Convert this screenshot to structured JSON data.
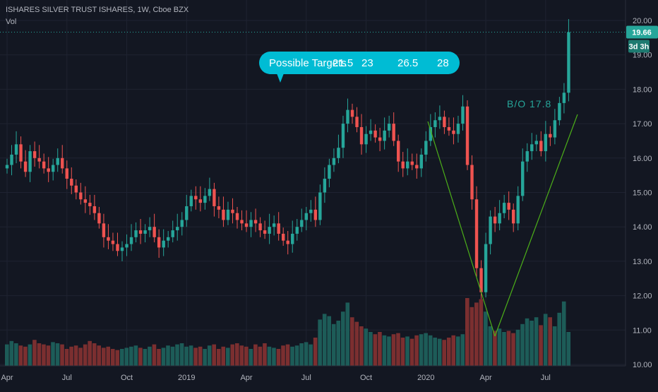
{
  "header": {
    "title": "ISHARES SILVER TRUST ISHARES, 1W, Cboe BZX",
    "vol_label": "Vol"
  },
  "price_tag": {
    "value": "19.66",
    "countdown": "3d 3h"
  },
  "callout": {
    "label": "Possible Targets",
    "targets": [
      "21.5",
      "23",
      "26.5",
      "28"
    ]
  },
  "breakout_label": "B/O  17.8",
  "colors": {
    "up": "#26a69a",
    "down": "#ef5350",
    "trendline": "#4caf19",
    "callout": "#00bcd4",
    "background": "#131722"
  },
  "chart_data": {
    "type": "candlestick",
    "interval": "1W",
    "ylim": [
      9.95,
      20.4
    ],
    "y_ticks": [
      10.0,
      11.0,
      12.0,
      13.0,
      14.0,
      15.0,
      16.0,
      17.0,
      18.0,
      19.0,
      20.0
    ],
    "x_ticks": [
      {
        "label": "Apr",
        "week": 0
      },
      {
        "label": "Jul",
        "week": 13
      },
      {
        "label": "Oct",
        "week": 26
      },
      {
        "label": "2019",
        "week": 39
      },
      {
        "label": "Apr",
        "week": 52
      },
      {
        "label": "Jul",
        "week": 65
      },
      {
        "label": "Oct",
        "week": 78
      },
      {
        "label": "2020",
        "week": 91
      },
      {
        "label": "Apr",
        "week": 104
      },
      {
        "label": "Jul",
        "week": 117
      }
    ],
    "close": [
      15.8,
      16.1,
      16.4,
      15.9,
      15.6,
      16.2,
      16.0,
      15.9,
      15.7,
      15.6,
      15.8,
      16.0,
      15.7,
      15.4,
      15.2,
      15.0,
      14.8,
      14.7,
      14.6,
      14.4,
      14.1,
      13.7,
      13.6,
      13.5,
      13.3,
      13.4,
      13.5,
      13.7,
      13.9,
      13.8,
      13.9,
      14.0,
      13.7,
      13.4,
      13.6,
      13.7,
      13.9,
      14.0,
      14.2,
      14.6,
      14.9,
      14.8,
      14.7,
      14.9,
      15.1,
      14.6,
      14.5,
      14.2,
      14.5,
      14.4,
      14.2,
      14.1,
      14.0,
      14.2,
      14.1,
      13.9,
      13.8,
      14.0,
      14.1,
      13.8,
      13.6,
      13.5,
      13.8,
      14.0,
      14.2,
      14.4,
      14.5,
      14.2,
      15.0,
      15.4,
      15.8,
      16.0,
      16.3,
      17.0,
      17.4,
      17.2,
      16.9,
      16.4,
      16.7,
      16.8,
      16.6,
      16.5,
      16.8,
      17.0,
      16.5,
      15.9,
      15.7,
      15.9,
      15.8,
      15.7,
      16.1,
      16.5,
      16.9,
      17.1,
      17.2,
      16.9,
      16.8,
      16.7,
      17.0,
      17.5,
      15.8,
      14.8,
      12.8,
      12.1,
      13.5,
      14.3,
      14.1,
      14.4,
      14.7,
      14.5,
      14.1,
      14.9,
      15.9,
      16.2,
      16.4,
      16.5,
      16.2,
      16.7,
      16.6,
      17.1,
      17.6,
      17.9,
      19.66
    ],
    "volume_k": [
      38,
      44,
      40,
      36,
      34,
      38,
      46,
      40,
      38,
      36,
      42,
      40,
      38,
      30,
      34,
      36,
      32,
      38,
      44,
      40,
      36,
      32,
      34,
      30,
      28,
      30,
      32,
      34,
      36,
      32,
      30,
      34,
      38,
      30,
      32,
      36,
      34,
      38,
      40,
      34,
      36,
      32,
      34,
      30,
      36,
      38,
      30,
      34,
      32,
      38,
      40,
      36,
      34,
      30,
      38,
      34,
      40,
      34,
      32,
      30,
      36,
      38,
      34,
      36,
      40,
      42,
      38,
      50,
      82,
      92,
      88,
      74,
      80,
      96,
      112,
      86,
      78,
      70,
      66,
      60,
      56,
      60,
      54,
      52,
      56,
      58,
      50,
      52,
      48,
      54,
      56,
      58,
      54,
      50,
      48,
      46,
      50,
      54,
      52,
      56,
      120,
      104,
      112,
      118,
      96,
      70,
      62,
      66,
      60,
      62,
      58,
      64,
      74,
      84,
      80,
      86,
      72,
      92,
      86,
      70,
      94,
      114,
      60
    ]
  }
}
